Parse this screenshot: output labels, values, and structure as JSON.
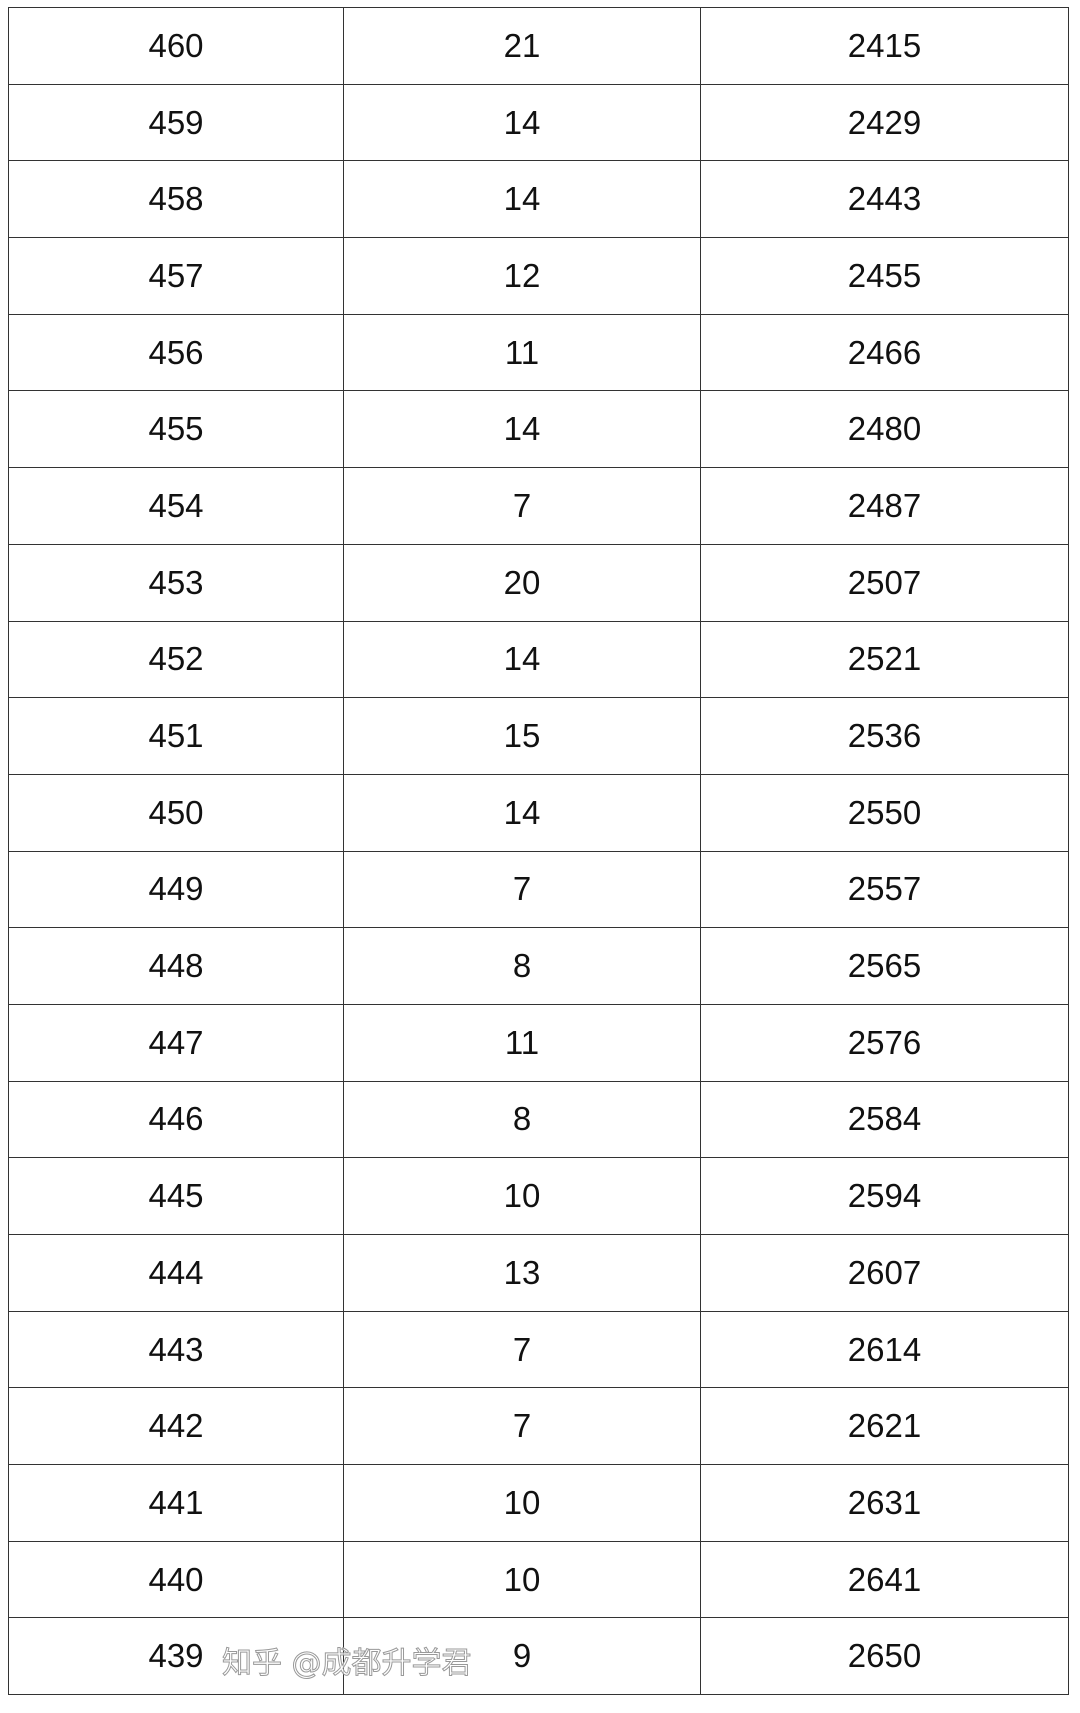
{
  "table": {
    "rows": [
      [
        "460",
        "21",
        "2415"
      ],
      [
        "459",
        "14",
        "2429"
      ],
      [
        "458",
        "14",
        "2443"
      ],
      [
        "457",
        "12",
        "2455"
      ],
      [
        "456",
        "11",
        "2466"
      ],
      [
        "455",
        "14",
        "2480"
      ],
      [
        "454",
        "7",
        "2487"
      ],
      [
        "453",
        "20",
        "2507"
      ],
      [
        "452",
        "14",
        "2521"
      ],
      [
        "451",
        "15",
        "2536"
      ],
      [
        "450",
        "14",
        "2550"
      ],
      [
        "449",
        "7",
        "2557"
      ],
      [
        "448",
        "8",
        "2565"
      ],
      [
        "447",
        "11",
        "2576"
      ],
      [
        "446",
        "8",
        "2584"
      ],
      [
        "445",
        "10",
        "2594"
      ],
      [
        "444",
        "13",
        "2607"
      ],
      [
        "443",
        "7",
        "2614"
      ],
      [
        "442",
        "7",
        "2621"
      ],
      [
        "441",
        "10",
        "2631"
      ],
      [
        "440",
        "10",
        "2641"
      ],
      [
        "439",
        "9",
        "2650"
      ]
    ]
  },
  "watermark": "知乎 @成都升学君"
}
